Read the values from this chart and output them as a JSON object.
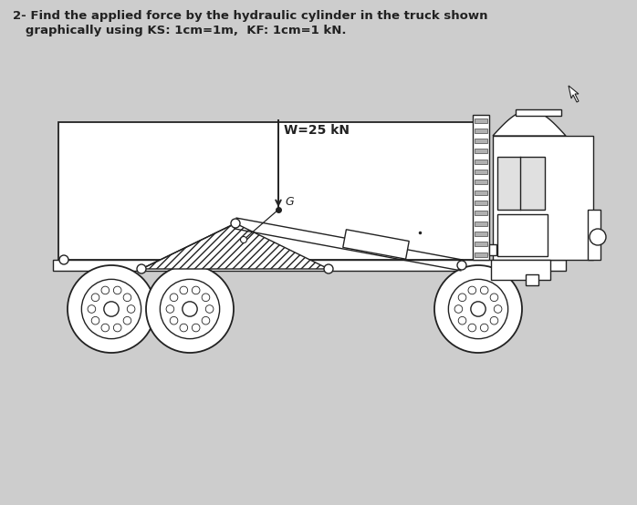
{
  "title_line1": "2- Find the applied force by the hydraulic cylinder in the truck shown",
  "title_line2": "   graphically using KS: 1cm=1m,  KF: 1cm=1 kN.",
  "weight_label": "W=25 kN",
  "G_label": "G",
  "bg_color": "#cdcdcd",
  "line_color": "#222222",
  "white": "#ffffff",
  "hatch": "////",
  "title_fontsize": 9.5,
  "label_fontsize": 9.5
}
